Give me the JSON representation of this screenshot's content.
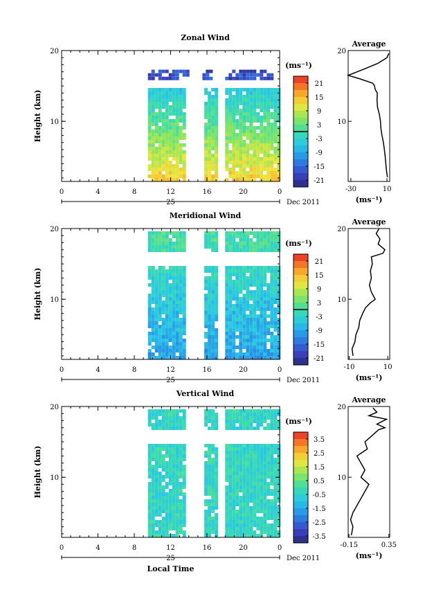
{
  "chart_data": [
    {
      "type": "heatmap",
      "title": "Zonal Wind",
      "ylabel": "Height (km)",
      "x_ticks": [
        "0",
        "4",
        "8",
        "12",
        "16",
        "20",
        "0"
      ],
      "y_ticks": [
        "20",
        "10"
      ],
      "xlim": [
        0,
        24
      ],
      "ylim": [
        1.5,
        20
      ],
      "date_day": "25",
      "date_label": "Dec 2011",
      "data_columns_hours": [
        [
          9.5,
          13.5
        ],
        [
          15.7,
          17.1
        ],
        [
          18.0,
          23.8
        ]
      ],
      "colorbar": {
        "unit_label": "(ms⁻¹)",
        "ticks": [
          "21",
          "15",
          "9",
          "3",
          "-3",
          "-9",
          "-15",
          "-21"
        ],
        "range": [
          -24,
          24
        ],
        "zero_line": true
      },
      "average_profile": {
        "title": "Average",
        "x_ticks": [
          "-30",
          "10"
        ],
        "xlim": [
          -33,
          13
        ],
        "xlabel": "(ms⁻¹)",
        "y_ticks": [
          "20",
          "10"
        ],
        "ylim": [
          1.5,
          20
        ],
        "points": [
          [
            10.5,
            2.1
          ],
          [
            9.5,
            3
          ],
          [
            8.7,
            4
          ],
          [
            8,
            5
          ],
          [
            7.1,
            6
          ],
          [
            6,
            7
          ],
          [
            4.5,
            8
          ],
          [
            3.3,
            9
          ],
          [
            2.8,
            10
          ],
          [
            1.5,
            11
          ],
          [
            -0.5,
            12
          ],
          [
            -1,
            13
          ],
          [
            -0.7,
            14
          ],
          [
            -3,
            14.5
          ],
          [
            -4,
            15.1
          ],
          [
            -6,
            15.4
          ],
          [
            -20,
            16
          ],
          [
            -33,
            16.5
          ],
          [
            -15,
            17.4
          ],
          [
            0,
            18.2
          ],
          [
            10,
            19
          ],
          [
            12,
            19.6
          ]
        ]
      }
    },
    {
      "type": "heatmap",
      "title": "Meridional Wind",
      "ylabel": "Height (km)",
      "x_ticks": [
        "0",
        "4",
        "8",
        "12",
        "16",
        "20",
        "0"
      ],
      "y_ticks": [
        "20",
        "10"
      ],
      "xlim": [
        0,
        24
      ],
      "ylim": [
        1.5,
        20
      ],
      "date_day": "25",
      "date_label": "Dec 2011",
      "data_columns_hours": [
        [
          9.5,
          13.5
        ],
        [
          15.7,
          17.1
        ],
        [
          18.0,
          23.8
        ]
      ],
      "colorbar": {
        "unit_label": "(ms⁻¹)",
        "ticks": [
          "21",
          "15",
          "9",
          "3",
          "-3",
          "-9",
          "-15",
          "-21"
        ],
        "range": [
          -24,
          24
        ],
        "zero_line": true
      },
      "average_profile": {
        "title": "Average",
        "x_ticks": [
          "-10",
          "10"
        ],
        "xlim": [
          -10.5,
          11
        ],
        "xlabel": "(ms⁻¹)",
        "y_ticks": [
          "20",
          "10"
        ],
        "ylim": [
          1.5,
          20
        ],
        "points": [
          [
            -8,
            2
          ],
          [
            -8.5,
            3
          ],
          [
            -7,
            4
          ],
          [
            -6.5,
            5
          ],
          [
            -5,
            6
          ],
          [
            -4.5,
            7
          ],
          [
            -3,
            8
          ],
          [
            -1.5,
            8.8
          ],
          [
            1,
            9.5
          ],
          [
            3.5,
            10
          ],
          [
            1.5,
            11
          ],
          [
            0.5,
            12
          ],
          [
            1.5,
            13
          ],
          [
            1,
            14
          ],
          [
            2,
            15
          ],
          [
            1.5,
            16
          ],
          [
            7.5,
            16.5
          ],
          [
            8.5,
            17
          ],
          [
            5,
            17.8
          ],
          [
            6,
            18.5
          ],
          [
            4,
            19.3
          ],
          [
            5.5,
            20
          ]
        ]
      }
    },
    {
      "type": "heatmap",
      "title": "Vertical Wind",
      "ylabel": "Height (km)",
      "xlabel": "Local Time",
      "x_ticks": [
        "0",
        "4",
        "8",
        "12",
        "16",
        "20",
        "0"
      ],
      "y_ticks": [
        "20",
        "10"
      ],
      "xlim": [
        0,
        24
      ],
      "ylim": [
        1.5,
        20
      ],
      "date_day": "25",
      "date_label": "Dec 2011",
      "data_columns_hours": [
        [
          9.5,
          13.5
        ],
        [
          15.7,
          17.1
        ],
        [
          18.0,
          23.8
        ]
      ],
      "colorbar": {
        "unit_label": "(ms⁻¹)",
        "ticks": [
          "3.5",
          "2.5",
          "1.5",
          "0.5",
          "-0.5",
          "-1.5",
          "-2.5",
          "-3.5"
        ],
        "range": [
          -4,
          4
        ],
        "zero_line": false
      },
      "average_profile": {
        "title": "Average",
        "x_ticks": [
          "-0.15",
          "0.35"
        ],
        "xlim": [
          -0.16,
          0.36
        ],
        "xlabel": "(ms⁻¹)",
        "y_ticks": [
          "20",
          "10"
        ],
        "ylim": [
          1.5,
          20
        ],
        "points": [
          [
            -0.12,
            1.8
          ],
          [
            -0.1,
            3
          ],
          [
            -0.13,
            4
          ],
          [
            -0.1,
            5
          ],
          [
            -0.05,
            6
          ],
          [
            0.0,
            7
          ],
          [
            0.05,
            8
          ],
          [
            0.1,
            9
          ],
          [
            0.0,
            10
          ],
          [
            0.05,
            11
          ],
          [
            0.0,
            12
          ],
          [
            -0.05,
            13
          ],
          [
            0.08,
            14
          ],
          [
            0.05,
            15
          ],
          [
            0.15,
            16
          ],
          [
            0.22,
            16.7
          ],
          [
            0.3,
            17
          ],
          [
            0.2,
            17.5
          ],
          [
            0.32,
            18.2
          ],
          [
            0.1,
            18.7
          ],
          [
            0.2,
            19.2
          ],
          [
            0.15,
            19.8
          ]
        ]
      }
    }
  ]
}
